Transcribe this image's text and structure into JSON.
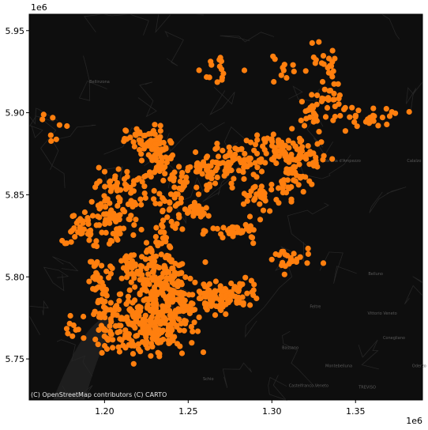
{
  "chart_data": {
    "type": "scatter",
    "title": "",
    "xlabel": "",
    "ylabel": "",
    "xlim": [
      1.155,
      1.39
    ],
    "ylim": [
      5.725,
      5.96
    ],
    "x_ticks": [
      "1.20",
      "1.25",
      "1.30",
      "1.35"
    ],
    "y_ticks": [
      "5.75",
      "5.80",
      "5.85",
      "5.90",
      "5.95"
    ],
    "x_ticks_values": [
      1.2,
      1.25,
      1.3,
      1.35
    ],
    "y_ticks_values": [
      5.75,
      5.8,
      5.85,
      5.9,
      5.95
    ],
    "x_offset_label": "1e6",
    "y_offset_label": "1e6",
    "grid": false,
    "basemap": "dark",
    "attribution": "(C) OpenStreetMap contributors (C) CARTO",
    "marker_color": "#ff7f0e",
    "background_color": "#0e0e0e",
    "map_labels": [
      {
        "text": "Bellinzona",
        "x": 1.197,
        "y": 5.918
      },
      {
        "text": "Cortina d'Ampezzo",
        "x": 1.342,
        "y": 5.87
      },
      {
        "text": "Calalzo",
        "x": 1.385,
        "y": 5.87
      },
      {
        "text": "Belluno",
        "x": 1.362,
        "y": 5.801
      },
      {
        "text": "Feltre",
        "x": 1.326,
        "y": 5.781
      },
      {
        "text": "Vittorio Veneto",
        "x": 1.366,
        "y": 5.777
      },
      {
        "text": "Bassano",
        "x": 1.311,
        "y": 5.756
      },
      {
        "text": "Conegliano",
        "x": 1.373,
        "y": 5.762
      },
      {
        "text": "Montebelluna",
        "x": 1.34,
        "y": 5.745
      },
      {
        "text": "Castelfranco Veneto",
        "x": 1.322,
        "y": 5.733
      },
      {
        "text": "TREVISO",
        "x": 1.357,
        "y": 5.732
      },
      {
        "text": "Schio",
        "x": 1.262,
        "y": 5.737
      },
      {
        "text": "Oderzo",
        "x": 1.388,
        "y": 5.745
      }
    ],
    "clusters": [
      {
        "x": 1.2205,
        "y": 5.768,
        "sx": 0.01,
        "sy": 0.008,
        "n": 140
      },
      {
        "x": 1.24,
        "y": 5.77,
        "sx": 0.007,
        "sy": 0.008,
        "n": 70
      },
      {
        "x": 1.245,
        "y": 5.785,
        "sx": 0.007,
        "sy": 0.006,
        "n": 60
      },
      {
        "x": 1.2,
        "y": 5.78,
        "sx": 0.004,
        "sy": 0.01,
        "n": 50
      },
      {
        "x": 1.23,
        "y": 5.79,
        "sx": 0.01,
        "sy": 0.008,
        "n": 90
      },
      {
        "x": 1.265,
        "y": 5.785,
        "sx": 0.005,
        "sy": 0.005,
        "n": 45
      },
      {
        "x": 1.28,
        "y": 5.79,
        "sx": 0.007,
        "sy": 0.004,
        "n": 50
      },
      {
        "x": 1.235,
        "y": 5.805,
        "sx": 0.008,
        "sy": 0.005,
        "n": 55
      },
      {
        "x": 1.215,
        "y": 5.805,
        "sx": 0.005,
        "sy": 0.005,
        "n": 35
      },
      {
        "x": 1.195,
        "y": 5.8,
        "sx": 0.002,
        "sy": 0.008,
        "n": 20
      },
      {
        "x": 1.205,
        "y": 5.835,
        "sx": 0.008,
        "sy": 0.01,
        "n": 80
      },
      {
        "x": 1.235,
        "y": 5.835,
        "sx": 0.004,
        "sy": 0.012,
        "n": 45
      },
      {
        "x": 1.185,
        "y": 5.83,
        "sx": 0.005,
        "sy": 0.004,
        "n": 30
      },
      {
        "x": 1.21,
        "y": 5.855,
        "sx": 0.008,
        "sy": 0.006,
        "n": 45
      },
      {
        "x": 1.225,
        "y": 5.882,
        "sx": 0.006,
        "sy": 0.005,
        "n": 60
      },
      {
        "x": 1.235,
        "y": 5.87,
        "sx": 0.005,
        "sy": 0.007,
        "n": 45
      },
      {
        "x": 1.245,
        "y": 5.85,
        "sx": 0.003,
        "sy": 0.008,
        "n": 25
      },
      {
        "x": 1.26,
        "y": 5.865,
        "sx": 0.008,
        "sy": 0.005,
        "n": 55
      },
      {
        "x": 1.28,
        "y": 5.87,
        "sx": 0.008,
        "sy": 0.005,
        "n": 50
      },
      {
        "x": 1.305,
        "y": 5.878,
        "sx": 0.01,
        "sy": 0.004,
        "n": 65
      },
      {
        "x": 1.32,
        "y": 5.872,
        "sx": 0.008,
        "sy": 0.003,
        "n": 35
      },
      {
        "x": 1.328,
        "y": 5.9,
        "sx": 0.008,
        "sy": 0.008,
        "n": 45
      },
      {
        "x": 1.313,
        "y": 5.86,
        "sx": 0.004,
        "sy": 0.005,
        "n": 30
      },
      {
        "x": 1.295,
        "y": 5.85,
        "sx": 0.01,
        "sy": 0.004,
        "n": 40
      },
      {
        "x": 1.28,
        "y": 5.828,
        "sx": 0.008,
        "sy": 0.003,
        "n": 35
      },
      {
        "x": 1.31,
        "y": 5.81,
        "sx": 0.007,
        "sy": 0.004,
        "n": 25
      },
      {
        "x": 1.255,
        "y": 5.84,
        "sx": 0.004,
        "sy": 0.004,
        "n": 20
      },
      {
        "x": 1.27,
        "y": 5.927,
        "sx": 0.006,
        "sy": 0.006,
        "n": 15
      },
      {
        "x": 1.305,
        "y": 5.925,
        "sx": 0.004,
        "sy": 0.005,
        "n": 10
      },
      {
        "x": 1.33,
        "y": 5.93,
        "sx": 0.004,
        "sy": 0.005,
        "n": 15
      },
      {
        "x": 1.36,
        "y": 5.898,
        "sx": 0.01,
        "sy": 0.003,
        "n": 25
      },
      {
        "x": 1.335,
        "y": 5.92,
        "sx": 0.003,
        "sy": 0.008,
        "n": 15
      },
      {
        "x": 1.17,
        "y": 5.89,
        "sx": 0.004,
        "sy": 0.005,
        "n": 8
      },
      {
        "x": 1.18,
        "y": 5.77,
        "sx": 0.004,
        "sy": 0.004,
        "n": 10
      },
      {
        "x": 1.178,
        "y": 5.822,
        "sx": 0.002,
        "sy": 0.002,
        "n": 5
      }
    ]
  }
}
